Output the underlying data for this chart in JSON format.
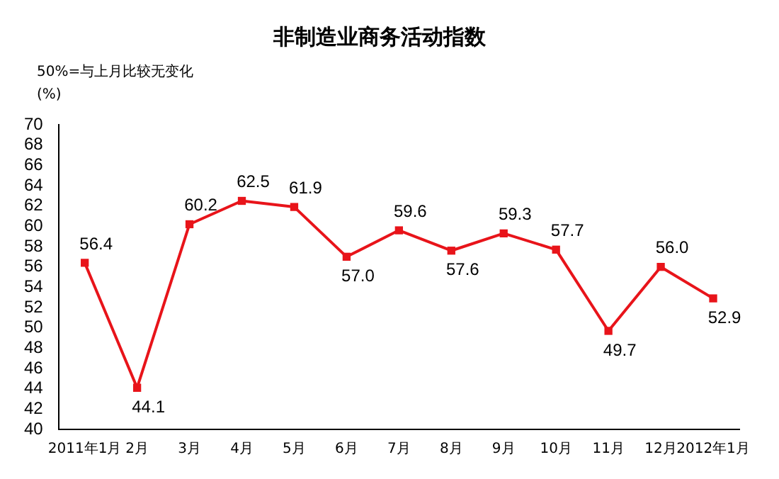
{
  "chart_data": {
    "type": "line",
    "title": "非制造业商务活动指数",
    "annotations": [
      "50%=与上月比较无变化",
      "(%)"
    ],
    "categories": [
      "2011年1月",
      "2月",
      "3月",
      "4月",
      "5月",
      "6月",
      "7月",
      "8月",
      "9月",
      "10月",
      "11月",
      "12月",
      "2012年1月"
    ],
    "series": [
      {
        "color": "#e8141a",
        "values": [
          56.4,
          44.1,
          60.2,
          62.5,
          61.9,
          57.0,
          59.6,
          57.6,
          59.3,
          57.7,
          49.7,
          56.0,
          52.9
        ],
        "value_labels": [
          "56.4",
          "44.1",
          "60.2",
          "62.5",
          "61.9",
          "57.0",
          "59.6",
          "57.6",
          "59.3",
          "57.7",
          "49.7",
          "56.0",
          "52.9"
        ]
      }
    ],
    "ylim": [
      40,
      70
    ],
    "yticks": [
      40,
      42,
      44,
      46,
      48,
      50,
      52,
      54,
      56,
      58,
      60,
      62,
      64,
      66,
      68,
      70
    ],
    "grid": false,
    "legend": false,
    "marker": "square",
    "line_style": "solid"
  }
}
